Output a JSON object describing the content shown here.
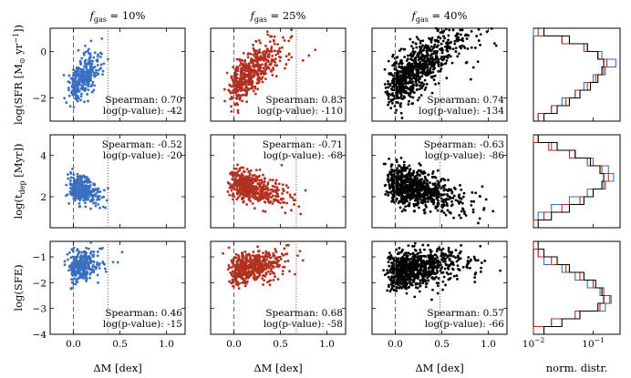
{
  "column_titles": [
    "f_gas = 10%",
    "f_gas = 25%",
    "f_gas = 40%"
  ],
  "row_ylabels": [
    "log(SFR [M⊙ yr⁻¹])",
    "log(t_dep [Myr])",
    "log(SFE)"
  ],
  "xlabel": "ΔM [dex]",
  "hist_xlabel": "norm. distr.",
  "colors": {
    "fgas10": "#3a6fbf",
    "fgas25": "#b2301f",
    "fgas40": "#000000"
  },
  "chart_data": {
    "type": "scatter",
    "xlim": [
      -0.25,
      1.2
    ],
    "xticks": [
      0.0,
      0.5,
      1.0
    ],
    "xtick_labels": [
      "0.0",
      "0.5",
      "1.0"
    ],
    "rows": [
      {
        "ylabel_main": "log(SFR [M",
        "ylabel_sub": "⊙",
        "ylabel_rest": " yr",
        "ylabel_sup": "−1",
        "ylabel_end": "])",
        "ylim": [
          -3.0,
          1.0
        ],
        "yticks": [
          -2,
          0
        ],
        "ytick_labels": [
          "−2",
          "0"
        ]
      },
      {
        "ylabel_main": "log(t",
        "ylabel_sub": "dep",
        "ylabel_rest": " [Myr])",
        "ylabel_sup": "",
        "ylabel_end": "",
        "ylim": [
          0.5,
          5.0
        ],
        "yticks": [
          2,
          4
        ],
        "ytick_labels": [
          "2",
          "4"
        ]
      },
      {
        "ylabel_main": "log(SFE)",
        "ylabel_sub": "",
        "ylabel_rest": "",
        "ylabel_sup": "",
        "ylabel_end": "",
        "ylim": [
          -4.0,
          -0.4
        ],
        "yticks": [
          -4,
          -3,
          -2,
          -1
        ],
        "ytick_labels": [
          "−4",
          "−3",
          "−2",
          "−1"
        ]
      }
    ],
    "columns": [
      {
        "title_prefix": "f",
        "title_sub": "gas",
        "title_value": " = 10%",
        "color": "#3a6fbf",
        "dashed_line_x": 0.0,
        "dotted_line_x": 0.37,
        "n_points": 300,
        "spearman": [
          {
            "label": "Spearman: 0.70",
            "pvalue": "log(p-value): -42",
            "position": "bottom-right"
          },
          {
            "label": "Spearman: -0.52",
            "pvalue": "log(p-value): -20",
            "position": "top-right"
          },
          {
            "label": "Spearman: 0.46",
            "pvalue": "log(p-value): -15",
            "position": "bottom-right"
          }
        ],
        "trends": [
          {
            "x0": 0.0,
            "xs": 0.13,
            "x_max": 0.55,
            "a": -1.2,
            "b": 2.0,
            "noise": 0.45
          },
          {
            "x0": 0.0,
            "xs": 0.13,
            "x_max": 0.55,
            "a": 2.45,
            "b": -1.4,
            "noise": 0.32
          },
          {
            "x0": 0.0,
            "xs": 0.13,
            "x_max": 0.55,
            "a": -1.4,
            "b": 0.55,
            "noise": 0.3
          }
        ]
      },
      {
        "title_prefix": "f",
        "title_sub": "gas",
        "title_value": " = 25%",
        "color": "#b2301f",
        "dashed_line_x": 0.0,
        "dotted_line_x": 0.67,
        "n_points": 500,
        "spearman": [
          {
            "label": "Spearman: 0.83",
            "pvalue": "log(p-value): -110",
            "position": "bottom-right"
          },
          {
            "label": "Spearman: -0.71",
            "pvalue": "log(p-value): -68",
            "position": "top-right"
          },
          {
            "label": "Spearman: 0.68",
            "pvalue": "log(p-value): -58",
            "position": "bottom-right"
          }
        ],
        "trends": [
          {
            "x0": 0.0,
            "xs": 0.25,
            "x_max": 0.95,
            "a": -1.1,
            "b": 2.0,
            "noise": 0.45
          },
          {
            "x0": 0.0,
            "xs": 0.25,
            "x_max": 0.95,
            "a": 2.7,
            "b": -1.6,
            "noise": 0.35
          },
          {
            "x0": 0.0,
            "xs": 0.25,
            "x_max": 0.95,
            "a": -1.5,
            "b": 0.65,
            "noise": 0.3
          }
        ]
      },
      {
        "title_prefix": "f",
        "title_sub": "gas",
        "title_value": " = 40%",
        "color": "#000000",
        "dashed_line_x": 0.0,
        "dotted_line_x": 0.48,
        "n_points": 800,
        "spearman": [
          {
            "label": "Spearman: 0.74",
            "pvalue": "log(p-value): -134",
            "position": "bottom-right"
          },
          {
            "label": "Spearman: -0.63",
            "pvalue": "log(p-value): -86",
            "position": "top-right"
          },
          {
            "label": "Spearman: 0.57",
            "pvalue": "log(p-value): -66",
            "position": "bottom-right"
          }
        ],
        "trends": [
          {
            "x0": -0.05,
            "xs": 0.35,
            "x_max": 1.15,
            "a": -1.3,
            "b": 2.2,
            "noise": 0.55
          },
          {
            "x0": -0.05,
            "xs": 0.35,
            "x_max": 1.15,
            "a": 2.7,
            "b": -1.6,
            "noise": 0.45
          },
          {
            "x0": -0.05,
            "xs": 0.35,
            "x_max": 1.15,
            "a": -1.6,
            "b": 0.6,
            "noise": 0.38
          }
        ]
      }
    ],
    "histogram": {
      "xscale": "log",
      "xlim_log10": [
        -2.0,
        -0.55
      ],
      "xtick_log10": [
        -2,
        -1
      ],
      "xtick_base": "10",
      "xtick_exp": [
        "−2",
        "−1"
      ],
      "series": [
        {
          "name": "f_gas = 10%",
          "color": "#3a6fbf",
          "rows": [
            [
              0.01,
              0.03,
              0.08,
              0.14,
              0.24,
              0.16,
              0.1,
              0.07,
              0.05,
              0.03,
              0.02,
              0.012
            ],
            [
              0.012,
              0.02,
              0.05,
              0.1,
              0.18,
              0.22,
              0.15,
              0.08,
              0.04,
              0.02,
              0.012,
              0.01
            ],
            [
              0.01,
              0.012,
              0.015,
              0.03,
              0.05,
              0.08,
              0.13,
              0.2,
              0.16,
              0.06,
              0.02,
              0.01
            ]
          ]
        },
        {
          "name": "f_gas = 25%",
          "color": "#b2301f",
          "rows": [
            [
              0.012,
              0.03,
              0.07,
              0.12,
              0.17,
              0.15,
              0.11,
              0.08,
              0.05,
              0.035,
              0.02,
              0.012
            ],
            [
              0.01,
              0.018,
              0.04,
              0.08,
              0.14,
              0.18,
              0.16,
              0.1,
              0.06,
              0.03,
              0.015,
              0.01
            ],
            [
              0.01,
              0.012,
              0.02,
              0.035,
              0.06,
              0.1,
              0.15,
              0.19,
              0.13,
              0.05,
              0.02,
              0.01
            ]
          ]
        },
        {
          "name": "f_gas = 40%",
          "color": "#000000",
          "rows": [
            [
              0.015,
              0.04,
              0.08,
              0.12,
              0.15,
              0.14,
              0.12,
              0.09,
              0.06,
              0.04,
              0.025,
              0.015
            ],
            [
              0.012,
              0.025,
              0.05,
              0.09,
              0.13,
              0.15,
              0.14,
              0.1,
              0.07,
              0.04,
              0.02,
              0.012
            ],
            [
              0.012,
              0.015,
              0.025,
              0.04,
              0.07,
              0.11,
              0.14,
              0.15,
              0.12,
              0.06,
              0.03,
              0.015
            ]
          ]
        }
      ]
    }
  }
}
